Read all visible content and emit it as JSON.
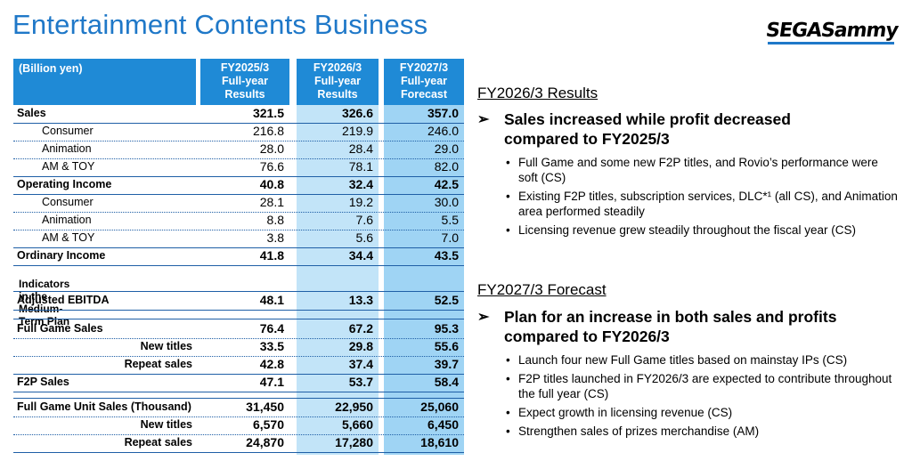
{
  "title": "Entertainment Contents Business",
  "logo": {
    "part1": "SEGA",
    "part2": "Sammy"
  },
  "table": {
    "unit_label": "(Billion yen)",
    "columns": [
      {
        "l1": "FY2025/3",
        "l2": "Full-year",
        "l3": "Results"
      },
      {
        "l1": "FY2026/3",
        "l2": "Full-year",
        "l3": "Results"
      },
      {
        "l1": "FY2027/3",
        "l2": "Full-year",
        "l3": "Forecast"
      }
    ],
    "rows": [
      {
        "label": "Sales",
        "v": [
          "321.5",
          "326.6",
          "357.0"
        ]
      },
      {
        "label": "Consumer",
        "v": [
          "216.8",
          "219.9",
          "246.0"
        ]
      },
      {
        "label": "Animation",
        "v": [
          "28.0",
          "28.4",
          "29.0"
        ]
      },
      {
        "label": "AM & TOY",
        "v": [
          "76.6",
          "78.1",
          "82.0"
        ]
      },
      {
        "label": "Operating Income",
        "v": [
          "40.8",
          "32.4",
          "42.5"
        ]
      },
      {
        "label": "Consumer",
        "v": [
          "28.1",
          "19.2",
          "30.0"
        ]
      },
      {
        "label": "Animation",
        "v": [
          "8.8",
          "7.6",
          "5.5"
        ]
      },
      {
        "label": "AM & TOY",
        "v": [
          "3.8",
          "5.6",
          "7.0"
        ]
      },
      {
        "label": "Ordinary Income",
        "v": [
          "41.8",
          "34.4",
          "43.5"
        ]
      }
    ],
    "indicators_label": "Indicators in the Medium-Term Plan",
    "rows2": [
      {
        "label": "Adjusted EBITDA",
        "v": [
          "48.1",
          "13.3",
          "52.5"
        ]
      },
      {
        "label": "Full Game Sales",
        "v": [
          "76.4",
          "67.2",
          "95.3"
        ]
      },
      {
        "label": "New titles",
        "v": [
          "33.5",
          "29.8",
          "55.6"
        ]
      },
      {
        "label": "Repeat sales",
        "v": [
          "42.8",
          "37.4",
          "39.7"
        ]
      },
      {
        "label": "F2P Sales",
        "v": [
          "47.1",
          "53.7",
          "58.4"
        ]
      },
      {
        "label": "Full Game Unit Sales (Thousand)",
        "v": [
          "31,450",
          "22,950",
          "25,060"
        ]
      },
      {
        "label": "New titles",
        "v": [
          "6,570",
          "5,660",
          "6,450"
        ]
      },
      {
        "label": "Repeat sales",
        "v": [
          "24,870",
          "17,280",
          "18,610"
        ]
      }
    ]
  },
  "results": {
    "title": "FY2026/3 Results",
    "arrow": "➢",
    "headline1": "Sales increased while profit decreased",
    "headline2": "compared to FY2025/3",
    "bullets": [
      "Full Game and some new F2P titles, and Rovio’s performance were soft (CS)",
      "Existing F2P titles, subscription services, DLC*¹ (all CS), and Animation area performed steadily",
      "Licensing revenue grew steadily throughout the fiscal year (CS)"
    ]
  },
  "forecast": {
    "title": "FY2027/3 Forecast",
    "arrow": "➢",
    "headline1": "Plan for an increase in both sales and profits",
    "headline2": "compared to FY2026/3",
    "bullets": [
      "Launch four new Full Game titles based on mainstay IPs (CS)",
      "F2P titles launched in FY2026/3 are expected to contribute throughout the full year (CS)",
      "Expect growth in licensing revenue (CS)",
      "Strengthen sales of prizes merchandise (AM)"
    ]
  },
  "colors": {
    "title": "#1f78c8",
    "header": "#1f8ad6",
    "band2": "#c2e4f8",
    "band3": "#9fd4f4",
    "rule": "#1f5fa6"
  }
}
